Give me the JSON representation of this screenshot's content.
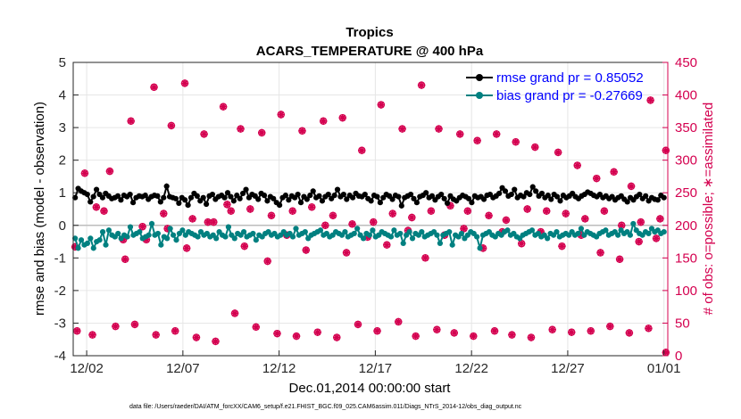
{
  "chart_data": {
    "type": "line",
    "title": "Tropics",
    "subtitle": "ACARS_TEMPERATURE @ 400 hPa",
    "xlabel": "Dec.01,2014 00:00:00 start",
    "ylabel_left": "rmse and bias (model - observation)",
    "ylabel_right": "# of obs: o=possible; ∗=assimilated",
    "footnote": "data file: /Users/raeder/DAI/ATM_forcXX/CAM6_setup/f.e21.FHIST_BGC.f09_025.CAM6assim.011/Diags_NTrS_2014-12/obs_diag_output.nc",
    "x_ticks": [
      {
        "label": "12/02",
        "day": 2
      },
      {
        "label": "12/07",
        "day": 7
      },
      {
        "label": "12/12",
        "day": 12
      },
      {
        "label": "12/17",
        "day": 17
      },
      {
        "label": "12/22",
        "day": 22
      },
      {
        "label": "12/27",
        "day": 27
      },
      {
        "label": "01/01",
        "day": 32
      }
    ],
    "xlim": [
      1.3,
      32.2
    ],
    "ylim_left": [
      -4,
      5
    ],
    "ylim_right": [
      0,
      450
    ],
    "y_ticks_left": [
      "-4",
      "-3",
      "-2",
      "-1",
      "0",
      "1",
      "2",
      "3",
      "4",
      "5"
    ],
    "y_ticks_right": [
      "0",
      "50",
      "100",
      "150",
      "200",
      "250",
      "300",
      "350",
      "400",
      "450"
    ],
    "legend_position": "top-right",
    "series": [
      {
        "name": "rmse",
        "legend_label": "rmse grand pr = 0.85052",
        "color": "#000000",
        "legend_text_color": "#0000ff",
        "axis": "left",
        "values": [
          0.85,
          1.13,
          1.05,
          1.0,
          0.95,
          0.72,
          0.88,
          1.1,
          0.95,
          0.85,
          0.98,
          0.9,
          0.82,
          0.85,
          0.9,
          0.78,
          0.92,
          0.88,
          0.95,
          0.7,
          0.85,
          0.9,
          0.88,
          0.92,
          0.8,
          0.88,
          0.92,
          0.9,
          0.72,
          0.85,
          1.2,
          0.88,
          0.85,
          0.82,
          0.68,
          0.85,
          0.78,
          0.62,
          0.85,
          0.98,
          0.9,
          0.75,
          0.85,
          0.65,
          0.9,
          0.95,
          0.8,
          0.88,
          0.92,
          0.85,
          1.0,
          0.88,
          0.75,
          0.92,
          0.82,
          0.98,
          1.1,
          0.85,
          0.95,
          0.9,
          0.8,
          0.98,
          0.92,
          0.75,
          0.88,
          0.82,
          0.7,
          0.62,
          0.85,
          0.92,
          0.78,
          0.9,
          0.85,
          0.95,
          0.7,
          0.88,
          0.8,
          0.92,
          1.05,
          0.85,
          0.9,
          0.75,
          0.88,
          0.95,
          0.82,
          0.92,
          1.1,
          0.88,
          0.95,
          0.8,
          0.92,
          0.85,
          0.98,
          0.9,
          0.88,
          0.95,
          0.82,
          0.75,
          0.92,
          0.88,
          0.7,
          0.85,
          0.95,
          0.9,
          0.8,
          0.92,
          0.88,
          0.6,
          0.85,
          0.9,
          0.95,
          0.82,
          0.7,
          0.88,
          0.92,
          1.0,
          0.85,
          0.9,
          0.78,
          0.88,
          0.95,
          0.82,
          0.68,
          0.9,
          0.8,
          0.75,
          0.85,
          0.92,
          0.88,
          0.82,
          0.7,
          0.9,
          0.85,
          0.88,
          0.8,
          0.92,
          0.95,
          0.85,
          0.9,
          0.98,
          1.15,
          1.05,
          0.9,
          0.95,
          1.1,
          0.85,
          0.92,
          0.88,
          1.0,
          0.95,
          1.18,
          1.05,
          0.9,
          0.98,
          0.85,
          0.92,
          0.8,
          0.95,
          0.88,
          0.75,
          0.92,
          0.85,
          0.9,
          0.98,
          0.88,
          0.82,
          0.9,
          0.95,
          1.02,
          0.98,
          0.92,
          0.88,
          0.95,
          0.85,
          0.9,
          0.82,
          0.88,
          0.78,
          0.85,
          0.9,
          0.8,
          0.72,
          0.85,
          0.78,
          0.88,
          0.95,
          0.82,
          0.9,
          0.75,
          0.85,
          0.8,
          0.78,
          0.92,
          0.85
        ]
      },
      {
        "name": "bias",
        "legend_label": "bias grand pr = -0.27669",
        "color": "#008080",
        "legend_text_color": "#0000ff",
        "axis": "left",
        "values": [
          -0.4,
          -0.7,
          -0.45,
          -0.6,
          -0.55,
          -0.4,
          -0.7,
          -0.5,
          -0.45,
          -0.2,
          -0.6,
          -0.15,
          -0.3,
          -0.35,
          -0.25,
          -0.4,
          -0.3,
          -0.35,
          -0.05,
          -0.3,
          -0.25,
          -0.2,
          -0.4,
          -0.35,
          -0.3,
          0.05,
          -0.3,
          -0.25,
          -0.6,
          -0.35,
          -0.4,
          -0.1,
          -0.3,
          -0.45,
          -0.25,
          -0.15,
          -0.3,
          -0.2,
          -0.25,
          -0.3,
          -0.35,
          -0.2,
          -0.3,
          -0.25,
          -0.35,
          -0.3,
          -0.4,
          -0.2,
          -0.3,
          -0.35,
          -0.05,
          -0.3,
          -0.4,
          -0.25,
          -0.3,
          -0.2,
          -0.35,
          -0.3,
          -0.25,
          -0.45,
          -0.3,
          -0.35,
          -0.25,
          -0.2,
          -0.3,
          -0.25,
          -0.35,
          -0.3,
          -0.2,
          -0.3,
          -0.25,
          -0.35,
          -0.1,
          -0.3,
          -0.25,
          -0.2,
          -0.4,
          -0.3,
          -0.25,
          -0.2,
          -0.15,
          -0.3,
          -0.25,
          -0.35,
          -0.3,
          -0.2,
          -0.25,
          -0.3,
          -0.2,
          -0.35,
          -0.3,
          -0.25,
          -0.1,
          -0.3,
          -0.4,
          -0.25,
          -0.3,
          -0.15,
          -0.35,
          -0.3,
          -0.2,
          -0.25,
          -0.3,
          -0.35,
          -0.15,
          -0.3,
          -0.25,
          -0.55,
          -0.3,
          -0.2,
          -0.4,
          -0.25,
          -0.3,
          -0.2,
          -0.35,
          -0.3,
          -0.25,
          -0.2,
          -0.3,
          -0.55,
          -0.3,
          -0.25,
          -0.2,
          -0.6,
          -0.3,
          -0.35,
          -0.25,
          -0.4,
          -0.3,
          -0.2,
          -0.25,
          -0.35,
          -0.7,
          -0.3,
          -0.25,
          -0.2,
          -0.3,
          -0.35,
          -0.25,
          -0.3,
          -0.2,
          -0.15,
          -0.3,
          -0.25,
          -0.35,
          -0.4,
          -0.3,
          -0.25,
          -0.2,
          -0.15,
          -0.3,
          -0.25,
          -0.35,
          -0.3,
          -0.4,
          -0.25,
          -0.3,
          -0.2,
          -0.35,
          -0.3,
          -0.25,
          -0.3,
          -0.2,
          -0.3,
          -0.25,
          -0.1,
          -0.3,
          -0.2,
          -0.25,
          -0.3,
          -0.35,
          -0.25,
          -0.2,
          -0.15,
          -0.3,
          -0.25,
          -0.2,
          -0.3,
          -0.15,
          -0.25,
          -0.2,
          -0.3,
          0.05,
          -0.15,
          -0.25,
          -0.3,
          -0.2,
          -0.25,
          -0.1,
          -0.2,
          -0.15,
          -0.25,
          -0.2
        ]
      },
      {
        "name": "possible_high",
        "axis": "right",
        "marker": "o",
        "color": "#d4004f",
        "points": [
          [
            1.4,
            167
          ],
          [
            1.9,
            280
          ],
          [
            2.5,
            228
          ],
          [
            3.2,
            283
          ],
          [
            3.9,
            178
          ],
          [
            4.3,
            360
          ],
          [
            4.9,
            198
          ],
          [
            5.5,
            412
          ],
          [
            6.0,
            218
          ],
          [
            6.4,
            353
          ],
          [
            7.1,
            418
          ],
          [
            7.5,
            210
          ],
          [
            8.1,
            340
          ],
          [
            8.6,
            205
          ],
          [
            9.1,
            382
          ],
          [
            9.5,
            222
          ],
          [
            10.0,
            348
          ],
          [
            10.5,
            225
          ],
          [
            11.1,
            342
          ],
          [
            11.6,
            215
          ],
          [
            12.1,
            370
          ],
          [
            12.7,
            222
          ],
          [
            13.2,
            345
          ],
          [
            13.7,
            228
          ],
          [
            14.3,
            360
          ],
          [
            14.8,
            215
          ],
          [
            15.3,
            365
          ],
          [
            15.8,
            202
          ],
          [
            16.3,
            315
          ],
          [
            16.9,
            205
          ],
          [
            17.3,
            385
          ],
          [
            17.9,
            218
          ],
          [
            18.4,
            348
          ],
          [
            18.9,
            212
          ],
          [
            19.4,
            415
          ],
          [
            19.9,
            222
          ],
          [
            20.3,
            348
          ],
          [
            20.9,
            230
          ],
          [
            21.4,
            340
          ],
          [
            21.8,
            222
          ],
          [
            22.3,
            330
          ],
          [
            22.9,
            215
          ],
          [
            23.3,
            340
          ],
          [
            23.8,
            208
          ],
          [
            24.3,
            328
          ],
          [
            24.9,
            225
          ],
          [
            25.3,
            320
          ],
          [
            25.9,
            222
          ],
          [
            26.5,
            312
          ],
          [
            26.9,
            218
          ],
          [
            27.5,
            292
          ],
          [
            27.9,
            210
          ],
          [
            28.5,
            272
          ],
          [
            28.9,
            222
          ],
          [
            29.4,
            282
          ],
          [
            29.8,
            200
          ],
          [
            30.3,
            260
          ],
          [
            30.8,
            205
          ],
          [
            31.3,
            392
          ],
          [
            31.8,
            210
          ],
          [
            32.1,
            315
          ]
        ]
      },
      {
        "name": "possible_low",
        "axis": "right",
        "marker": "o",
        "color": "#d4004f",
        "points": [
          [
            1.5,
            38
          ],
          [
            2.3,
            32
          ],
          [
            2.9,
            222
          ],
          [
            3.5,
            45
          ],
          [
            4.0,
            148
          ],
          [
            4.5,
            48
          ],
          [
            5.1,
            178
          ],
          [
            5.6,
            32
          ],
          [
            6.2,
            195
          ],
          [
            6.6,
            38
          ],
          [
            7.2,
            165
          ],
          [
            7.7,
            28
          ],
          [
            8.3,
            205
          ],
          [
            8.7,
            22
          ],
          [
            9.3,
            232
          ],
          [
            9.7,
            65
          ],
          [
            10.2,
            168
          ],
          [
            10.8,
            44
          ],
          [
            11.4,
            145
          ],
          [
            11.9,
            34
          ],
          [
            12.4,
            185
          ],
          [
            12.9,
            30
          ],
          [
            13.4,
            162
          ],
          [
            14.0,
            36
          ],
          [
            14.4,
            200
          ],
          [
            15.0,
            28
          ],
          [
            15.5,
            158
          ],
          [
            16.1,
            48
          ],
          [
            16.6,
            182
          ],
          [
            17.1,
            38
          ],
          [
            17.6,
            170
          ],
          [
            18.2,
            52
          ],
          [
            18.7,
            192
          ],
          [
            19.1,
            30
          ],
          [
            19.6,
            150
          ],
          [
            20.2,
            40
          ],
          [
            20.6,
            185
          ],
          [
            21.1,
            35
          ],
          [
            21.6,
            195
          ],
          [
            22.1,
            30
          ],
          [
            22.6,
            165
          ],
          [
            23.2,
            38
          ],
          [
            23.6,
            190
          ],
          [
            24.1,
            32
          ],
          [
            24.6,
            172
          ],
          [
            25.1,
            28
          ],
          [
            25.6,
            190
          ],
          [
            26.2,
            40
          ],
          [
            26.7,
            168
          ],
          [
            27.2,
            36
          ],
          [
            27.7,
            185
          ],
          [
            28.2,
            38
          ],
          [
            28.7,
            158
          ],
          [
            29.2,
            45
          ],
          [
            29.7,
            148
          ],
          [
            30.2,
            35
          ],
          [
            30.7,
            175
          ],
          [
            31.2,
            42
          ],
          [
            31.6,
            180
          ],
          [
            32.1,
            5
          ]
        ]
      }
    ]
  }
}
